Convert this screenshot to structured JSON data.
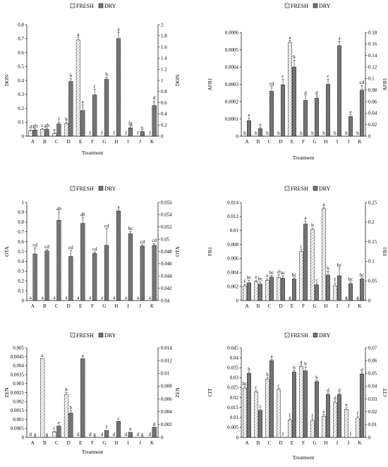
{
  "colors": {
    "fresh_fill": "#ffffff",
    "fresh_hatch": "#8a8a8a",
    "dry_fill": "#6e6e6e",
    "axis": "#000000"
  },
  "legend": {
    "fresh": "FRESH",
    "dry": "DRY"
  },
  "chart_data": [
    {
      "type": "bar",
      "categories": [
        "A",
        "B",
        "C",
        "D",
        "E",
        "F",
        "G",
        "H",
        "I",
        "J",
        "K"
      ],
      "xlabel": "Treatment",
      "ylabel": "DON",
      "ylabel_right": "DON",
      "left_axis": {
        "min": 0,
        "max": 0.8,
        "ticks": [
          "0",
          "0.1",
          "0.2",
          "0.3",
          "0.4",
          "0.5",
          "0.6",
          "0.7",
          "0.8"
        ]
      },
      "right_axis": {
        "min": 0,
        "max": 2,
        "ticks": [
          "0",
          "0.2",
          "0.4",
          "0.6",
          "0.8",
          "1",
          "1.2",
          "1.4",
          "1.6",
          "1.8",
          "2"
        ]
      },
      "series": [
        {
          "name": "FRESH",
          "axis": "left",
          "values": [
            0.04,
            0.05,
            0.02,
            0.09,
            0.69,
            0.0,
            0.0,
            0.0,
            0.0,
            0.0,
            0.0
          ],
          "errors": [
            0.005,
            0.005,
            0.003,
            0.01,
            0.02,
            0,
            0,
            0,
            0,
            0,
            0
          ],
          "labels": [
            "d",
            "c",
            "e",
            "b",
            "a",
            "f",
            "f",
            "f",
            "f",
            "f",
            "f"
          ]
        },
        {
          "name": "DRY",
          "axis": "right",
          "values": [
            0.11,
            0.12,
            0.22,
            0.98,
            0.46,
            0.74,
            1.02,
            1.75,
            0.15,
            0.08,
            0.55
          ],
          "errors": [
            0.02,
            0.02,
            0.03,
            0.05,
            0.1,
            0.1,
            0.04,
            0.12,
            0.03,
            0.01,
            0.08
          ],
          "labels": [
            "gh",
            "gh",
            "f",
            "b",
            "e",
            "c",
            "b",
            "a",
            "fg",
            "h",
            "d"
          ]
        }
      ]
    },
    {
      "type": "bar",
      "categories": [
        "A",
        "B",
        "C",
        "D",
        "E",
        "F",
        "G",
        "H",
        "I",
        "J",
        "K"
      ],
      "xlabel": "Treatment",
      "ylabel": "AFB1",
      "ylabel_right": "AFB1",
      "left_axis": {
        "min": 0,
        "max": 0.0006,
        "ticks": [
          "0",
          "0.0001",
          "0.0002",
          "0.0003",
          "0.0004",
          "0.0005",
          "0.0006"
        ]
      },
      "right_axis": {
        "min": 0,
        "max": 0.18,
        "ticks": [
          "0",
          "0.02",
          "0.04",
          "0.06",
          "0.08",
          "0.1",
          "0.12",
          "0.14",
          "0.16",
          "0.18"
        ]
      },
      "series": [
        {
          "name": "FRESH",
          "axis": "left",
          "values": [
            0.0,
            0.0,
            0.0,
            0.0,
            0.000543,
            0.0,
            0.0,
            0.0,
            0.0,
            0.0,
            0.0
          ],
          "errors": [
            0,
            0,
            0,
            0,
            1e-05,
            0,
            0,
            0,
            0,
            0,
            0
          ],
          "labels": [
            "b",
            "b",
            "b",
            "b",
            "a",
            "b",
            "b",
            "b",
            "b",
            "b",
            "b"
          ]
        },
        {
          "name": "DRY",
          "axis": "right",
          "values": [
            0.027,
            0.013,
            0.078,
            0.089,
            0.12,
            0.062,
            0.066,
            0.09,
            0.157,
            0.034,
            0.08
          ],
          "errors": [
            0.004,
            0.002,
            0.008,
            0.01,
            0.012,
            0.008,
            0.004,
            0.009,
            0.008,
            0.003,
            0.008
          ],
          "labels": [
            "e",
            "e",
            "cd",
            "c",
            "b",
            "d",
            "d",
            "c",
            "a",
            "e",
            "cd"
          ]
        }
      ]
    },
    {
      "type": "bar",
      "categories": [
        "A",
        "B",
        "C",
        "D",
        "E",
        "F",
        "G",
        "H",
        "I",
        "J",
        "K"
      ],
      "xlabel": "",
      "ylabel": "OTA",
      "ylabel_right": "OTA",
      "left_axis": {
        "min": 0,
        "max": 1,
        "ticks": [
          "0",
          "0.1",
          "0.2",
          "0.3",
          "0.4",
          "0.5",
          "0.6",
          "0.7",
          "0.8",
          "0.9",
          "1"
        ]
      },
      "right_axis": {
        "min": 0.04,
        "max": 0.056,
        "ticks": [
          "0.04",
          "0.042",
          "0.044",
          "0.046",
          "0.048",
          "0.05",
          "0.052",
          "0.054",
          "0.056"
        ]
      },
      "series": [
        {
          "name": "FRESH",
          "axis": "left",
          "values": [
            0,
            0,
            0,
            0,
            0,
            0,
            0,
            0,
            0,
            0,
            0
          ],
          "errors": [
            0,
            0,
            0,
            0,
            0,
            0,
            0,
            0,
            0,
            0,
            0
          ],
          "labels": [
            "a",
            "a",
            "a",
            "a",
            "a",
            "a",
            "a",
            "a",
            "a",
            "a",
            "a"
          ]
        },
        {
          "name": "DRY",
          "axis": "right",
          "values": [
            0.0476,
            0.0481,
            0.0531,
            0.0472,
            0.0526,
            0.0477,
            0.049,
            0.0546,
            0.0509,
            0.0489,
            0.049
          ],
          "errors": [
            0.001,
            0.0002,
            0.0014,
            0.001,
            0.001,
            0.0002,
            0.0027,
            0.0002,
            0.0004,
            0.0002,
            0.0003
          ],
          "labels": [
            "cd",
            "cd",
            "ab",
            "cd",
            "ab",
            "cd",
            "cd",
            "a",
            "bc",
            "cd",
            "cd"
          ]
        }
      ]
    },
    {
      "type": "bar",
      "categories": [
        "A",
        "B",
        "C",
        "D",
        "E",
        "F",
        "G",
        "H",
        "I",
        "J",
        "K"
      ],
      "xlabel": "",
      "ylabel": "FB1",
      "ylabel_right": "FB1",
      "left_axis": {
        "min": 0,
        "max": 0.014,
        "ticks": [
          "0",
          "0.002",
          "0.004",
          "0.006",
          "0.008",
          "0.01",
          "0.012",
          "0.014"
        ]
      },
      "right_axis": {
        "min": 0,
        "max": 0.25,
        "ticks": [
          "0",
          "0.05",
          "0.1",
          "0.15",
          "0.2",
          "0.25"
        ]
      },
      "series": [
        {
          "name": "FRESH",
          "axis": "left",
          "values": [
            0.0021,
            0.0027,
            0.0029,
            0.0033,
            0.0,
            0.007,
            0.0101,
            0.0131,
            0.0021,
            0.0,
            0.0
          ],
          "errors": [
            0.0002,
            0.0002,
            0.0002,
            0.0004,
            0,
            0.0003,
            0.0002,
            0.0002,
            0.0004,
            0,
            0
          ],
          "labels": [
            "f",
            "e",
            "e",
            "d",
            "g",
            "c",
            "b",
            "a",
            "f",
            "g",
            "g"
          ]
        },
        {
          "name": "DRY",
          "axis": "right",
          "values": [
            0.045,
            0.042,
            0.06,
            0.057,
            0.055,
            0.195,
            0.04,
            0.065,
            0.063,
            0.043,
            0.055
          ],
          "errors": [
            0.006,
            0.006,
            0.004,
            0.006,
            0.003,
            0.008,
            0.005,
            0.01,
            0.02,
            0.004,
            0.003
          ],
          "labels": [
            "bc",
            "bc",
            "bc",
            "bc",
            "bc",
            "a",
            "c",
            "b",
            "bc",
            "bc",
            "bc"
          ]
        }
      ]
    },
    {
      "type": "bar",
      "categories": [
        "A",
        "B",
        "C",
        "D",
        "E",
        "F",
        "G",
        "H",
        "I",
        "J",
        "K"
      ],
      "xlabel": "Treatment",
      "ylabel": "ZEN",
      "ylabel_right": "ZEN",
      "left_axis": {
        "min": 0,
        "max": 0.005,
        "ticks": [
          "0",
          "0.0005",
          "0.001",
          "0.0015",
          "0.002",
          "0.0025",
          "0.003",
          "0.0035",
          "0.004",
          "0.0045",
          "0.005"
        ]
      },
      "right_axis": {
        "min": 0,
        "max": 0.014,
        "ticks": [
          "0",
          "0.002",
          "0.004",
          "0.006",
          "0.008",
          "0.01",
          "0.012",
          "0.014"
        ]
      },
      "series": [
        {
          "name": "FRESH",
          "axis": "left",
          "values": [
            0.0,
            0.0044,
            0.0003,
            0.0024,
            0.0,
            0.0,
            0.0,
            0.0,
            0.0,
            0.0,
            0.0
          ],
          "errors": [
            0,
            0,
            5e-05,
            0.0001,
            0,
            0,
            0,
            0,
            0,
            0,
            0
          ],
          "labels": [
            "d",
            "a",
            "c",
            "b",
            "d",
            "d",
            "d",
            "d",
            "d",
            "d",
            "d"
          ]
        },
        {
          "name": "DRY",
          "axis": "right",
          "values": [
            0.0,
            0.0,
            0.0018,
            0.0038,
            0.0123,
            0.0,
            0.0011,
            0.0025,
            0.0008,
            0.0,
            0.0016
          ],
          "errors": [
            0,
            0,
            0,
            0.0004,
            0,
            0,
            0,
            0,
            0,
            0,
            0
          ],
          "labels": [
            "g",
            "g",
            "e",
            "b",
            "a",
            "g",
            "f",
            "c",
            "e",
            "g",
            "d"
          ]
        }
      ]
    },
    {
      "type": "bar",
      "categories": [
        "A",
        "B",
        "C",
        "D",
        "E",
        "F",
        "G",
        "H",
        "I",
        "J",
        "K"
      ],
      "xlabel": "Treatment",
      "ylabel": "CIT",
      "ylabel_right": "CIT",
      "left_axis": {
        "min": 0,
        "max": 0.045,
        "ticks": [
          "0",
          "0.005",
          "0.01",
          "0.015",
          "0.02",
          "0.025",
          "0.03",
          "0.035",
          "0.04",
          "0.045"
        ]
      },
      "right_axis": {
        "min": 0,
        "max": 0.07,
        "ticks": [
          "0",
          "0.01",
          "0.02",
          "0.03",
          "0.04",
          "0.05",
          "0.06",
          "0.07"
        ]
      },
      "series": [
        {
          "name": "FRESH",
          "axis": "left",
          "values": [
            0.0248,
            0.0229,
            0.0292,
            0.0239,
            0.0088,
            0.0357,
            0.0085,
            0.0106,
            0.0174,
            0.0141,
            0.0096
          ],
          "errors": [
            0.0008,
            0.0008,
            0.0009,
            0.0008,
            0.0008,
            0.0008,
            0.0008,
            0.0008,
            0.0008,
            0.0008,
            0.0008
          ],
          "labels": [
            "bc",
            "c",
            "b",
            "c",
            "f",
            "a",
            "f",
            "e",
            "d",
            "e",
            "f"
          ]
        },
        {
          "name": "DRY",
          "axis": "right",
          "values": [
            0.05,
            0.021,
            0.06,
            0.0,
            0.051,
            0.052,
            0.0435,
            0.0335,
            0.0335,
            0.0,
            0.0495
          ],
          "errors": [
            0.001,
            0.001,
            0.001,
            0,
            0.001,
            0.003,
            0.001,
            0.001,
            0.001,
            0,
            0.001
          ],
          "labels": [
            "b",
            "c",
            "a",
            "f",
            "b",
            "b",
            "b",
            "d",
            "d",
            "f",
            "d"
          ]
        }
      ]
    }
  ]
}
